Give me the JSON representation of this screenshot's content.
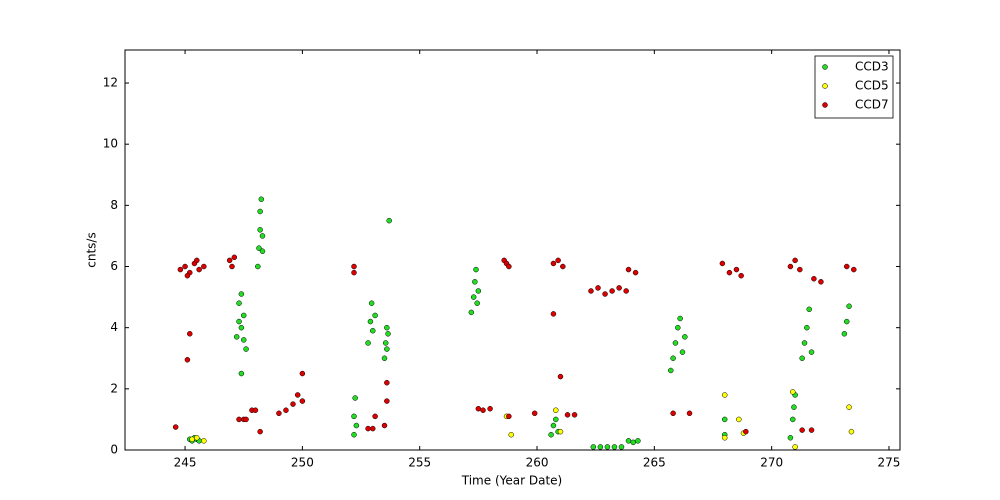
{
  "chart_data": {
    "type": "scatter",
    "x_label": "Time (Year Date)",
    "y_label": "cnts/s",
    "xlim": [
      242.44,
      275.47
    ],
    "ylim": [
      0,
      13.08
    ],
    "xticks": [
      245,
      250,
      255,
      260,
      265,
      270,
      275
    ],
    "yticks": [
      0,
      2,
      4,
      6,
      8,
      10,
      12
    ],
    "legend": "upper right",
    "series": [
      {
        "name": "CCD3",
        "color": "#22dd22",
        "x": [
          245.2,
          245.3,
          245.4,
          245.5,
          245.6,
          247.2,
          247.3,
          247.3,
          247.4,
          247.4,
          247.5,
          247.5,
          247.6,
          247.4,
          248.1,
          248.15,
          248.2,
          248.2,
          248.25,
          248.3,
          248.3,
          252.2,
          252.2,
          252.25,
          252.3,
          252.8,
          252.9,
          252.95,
          253.0,
          253.1,
          253.5,
          253.55,
          253.6,
          253.6,
          253.65,
          253.7,
          257.2,
          257.3,
          257.35,
          257.4,
          257.45,
          257.5,
          260.6,
          260.7,
          260.8,
          260.9,
          262.4,
          262.7,
          263.0,
          263.3,
          263.6,
          263.9,
          264.1,
          264.3,
          265.7,
          265.8,
          265.9,
          266.0,
          266.1,
          266.2,
          266.3,
          268.0,
          268.0,
          270.8,
          270.9,
          270.95,
          271.0,
          271.3,
          271.4,
          271.5,
          271.6,
          271.7,
          273.1,
          273.2,
          273.3
        ],
        "y": [
          0.35,
          0.3,
          0.4,
          0.35,
          0.3,
          3.7,
          4.2,
          4.8,
          5.1,
          4.0,
          3.6,
          4.4,
          3.3,
          2.5,
          6.0,
          6.6,
          7.2,
          7.8,
          8.2,
          7.0,
          6.5,
          0.5,
          1.1,
          1.7,
          0.8,
          3.5,
          4.2,
          4.8,
          3.9,
          4.4,
          3.0,
          3.5,
          4.0,
          3.3,
          3.8,
          7.5,
          4.5,
          5.0,
          5.5,
          5.9,
          4.8,
          5.2,
          0.5,
          0.8,
          1.0,
          0.6,
          0.1,
          0.1,
          0.1,
          0.1,
          0.1,
          0.3,
          0.25,
          0.3,
          2.6,
          3.0,
          3.5,
          4.0,
          4.3,
          3.2,
          3.7,
          0.5,
          1.0,
          0.4,
          1.0,
          1.4,
          1.8,
          3.0,
          3.5,
          4.0,
          4.6,
          3.2,
          3.8,
          4.2,
          4.7
        ]
      },
      {
        "name": "CCD5",
        "color": "#ffff00",
        "x": [
          245.3,
          245.5,
          245.8,
          258.7,
          258.9,
          260.8,
          261.0,
          268.0,
          268.0,
          268.6,
          268.8,
          270.9,
          271.0,
          273.3,
          273.4
        ],
        "y": [
          0.35,
          0.4,
          0.3,
          1.1,
          0.5,
          1.3,
          0.6,
          1.8,
          0.4,
          1.0,
          0.55,
          1.9,
          0.1,
          1.4,
          0.6
        ]
      },
      {
        "name": "CCD7",
        "color": "#dd0000",
        "x": [
          244.8,
          245.0,
          245.2,
          245.4,
          245.6,
          245.8,
          245.1,
          245.5,
          245.2,
          245.1,
          244.6,
          246.9,
          247.0,
          247.1,
          247.3,
          247.5,
          247.6,
          247.85,
          248.0,
          248.2,
          249.0,
          249.3,
          249.6,
          249.8,
          250.0,
          250.0,
          252.2,
          252.2,
          252.8,
          253.0,
          253.1,
          253.5,
          253.6,
          253.6,
          257.5,
          257.7,
          258.0,
          258.6,
          258.7,
          258.8,
          258.8,
          259.9,
          260.7,
          260.9,
          261.1,
          261.3,
          261.6,
          260.7,
          261.0,
          262.3,
          262.6,
          262.9,
          263.2,
          263.5,
          263.8,
          263.9,
          264.2,
          265.8,
          266.5,
          267.9,
          268.2,
          268.5,
          268.7,
          268.9,
          270.8,
          271.0,
          271.2,
          271.3,
          271.7,
          271.8,
          272.1,
          273.2,
          273.5
        ],
        "y": [
          5.9,
          6.0,
          5.8,
          6.1,
          5.9,
          6.0,
          5.7,
          6.2,
          3.8,
          2.95,
          0.75,
          6.2,
          6.0,
          6.3,
          1.0,
          1.0,
          1.0,
          1.3,
          1.3,
          0.6,
          1.2,
          1.3,
          1.5,
          1.8,
          2.5,
          1.6,
          5.8,
          6.0,
          0.7,
          0.7,
          1.1,
          0.8,
          1.6,
          2.2,
          1.35,
          1.3,
          1.35,
          6.2,
          6.1,
          6.0,
          1.1,
          1.2,
          6.1,
          6.2,
          6.0,
          1.15,
          1.15,
          4.45,
          2.4,
          5.2,
          5.3,
          5.1,
          5.2,
          5.3,
          5.2,
          5.9,
          5.8,
          1.2,
          1.2,
          6.1,
          5.8,
          5.9,
          5.7,
          0.6,
          6.0,
          6.2,
          5.9,
          0.65,
          0.65,
          5.6,
          5.5,
          6.0,
          5.9
        ]
      }
    ]
  }
}
